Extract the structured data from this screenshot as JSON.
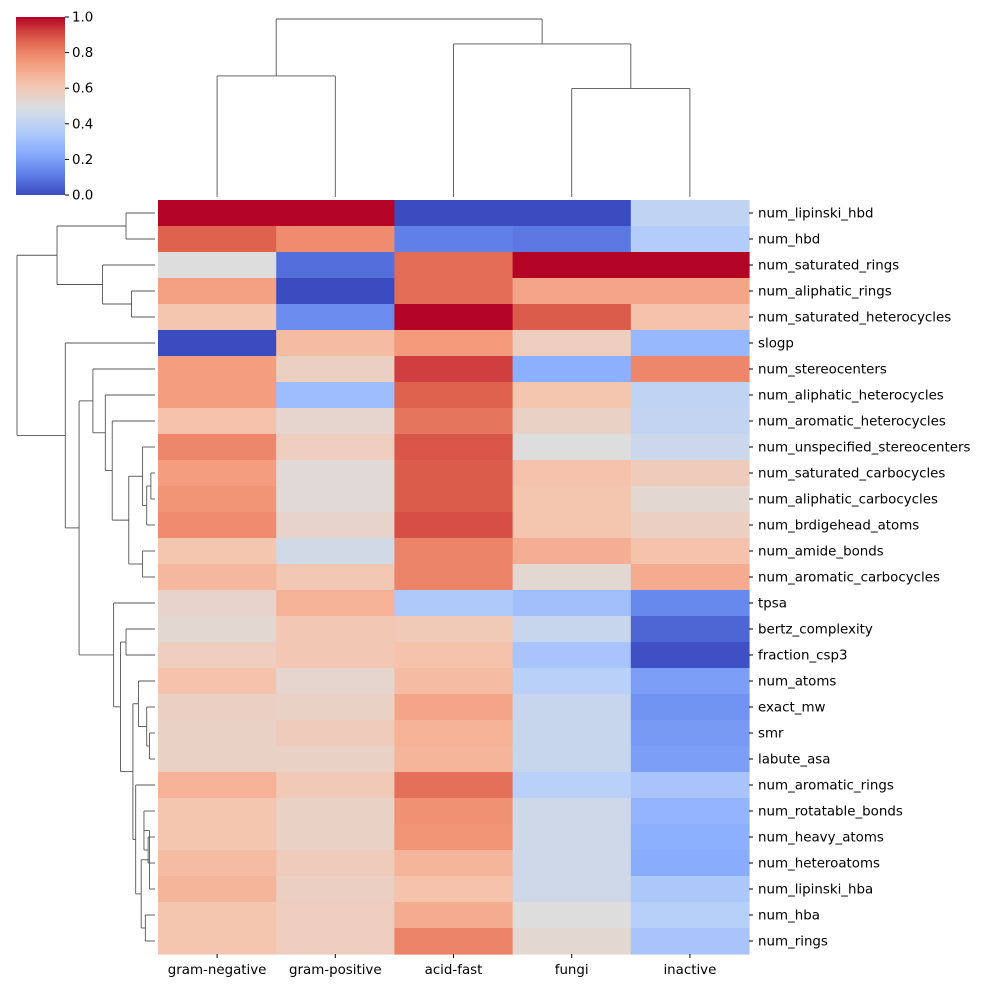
{
  "chart_data": {
    "type": "heatmap",
    "title": "",
    "colormap": "coolwarm",
    "colorbar": {
      "vmin": 0.0,
      "vmax": 1.0,
      "ticks": [
        "0.0",
        "0.2",
        "0.4",
        "0.6",
        "0.8",
        "1.0"
      ]
    },
    "columns": [
      "gram-negative",
      "gram-positive",
      "acid-fast",
      "fungi",
      "inactive"
    ],
    "rows": [
      "num_lipinski_hbd",
      "num_hbd",
      "num_saturated_rings",
      "num_aliphatic_rings",
      "num_saturated_heterocycles",
      "slogp",
      "num_stereocenters",
      "num_aliphatic_heterocycles",
      "num_aromatic_heterocycles",
      "num_unspecified_stereocenters",
      "num_saturated_carbocycles",
      "num_aliphatic_carbocycles",
      "num_brdigehead_atoms",
      "num_amide_bonds",
      "num_aromatic_carbocycles",
      "tpsa",
      "bertz_complexity",
      "fraction_csp3",
      "num_atoms",
      "exact_mw",
      "smr",
      "labute_asa",
      "num_aromatic_rings",
      "num_rotatable_bonds",
      "num_heavy_atoms",
      "num_heteroatoms",
      "num_lipinski_hba",
      "num_hba",
      "num_rings"
    ],
    "values": [
      [
        1.0,
        1.0,
        0.0,
        0.0,
        0.4
      ],
      [
        0.87,
        0.78,
        0.12,
        0.1,
        0.36
      ],
      [
        0.5,
        0.08,
        0.85,
        1.0,
        1.0
      ],
      [
        0.73,
        0.0,
        0.85,
        0.72,
        0.72
      ],
      [
        0.62,
        0.15,
        1.0,
        0.88,
        0.63
      ],
      [
        0.0,
        0.65,
        0.75,
        0.58,
        0.28
      ],
      [
        0.74,
        0.57,
        0.92,
        0.25,
        0.79
      ],
      [
        0.74,
        0.3,
        0.87,
        0.62,
        0.4
      ],
      [
        0.63,
        0.54,
        0.83,
        0.56,
        0.41
      ],
      [
        0.79,
        0.58,
        0.89,
        0.5,
        0.44
      ],
      [
        0.74,
        0.52,
        0.88,
        0.63,
        0.59
      ],
      [
        0.76,
        0.52,
        0.88,
        0.62,
        0.53
      ],
      [
        0.78,
        0.55,
        0.9,
        0.62,
        0.57
      ],
      [
        0.62,
        0.46,
        0.8,
        0.69,
        0.63
      ],
      [
        0.66,
        0.61,
        0.8,
        0.53,
        0.7
      ],
      [
        0.55,
        0.68,
        0.35,
        0.31,
        0.14
      ],
      [
        0.53,
        0.61,
        0.6,
        0.43,
        0.06
      ],
      [
        0.58,
        0.61,
        0.63,
        0.33,
        0.01
      ],
      [
        0.63,
        0.54,
        0.65,
        0.38,
        0.2
      ],
      [
        0.57,
        0.56,
        0.72,
        0.43,
        0.17
      ],
      [
        0.56,
        0.59,
        0.68,
        0.43,
        0.19
      ],
      [
        0.56,
        0.56,
        0.67,
        0.43,
        0.2
      ],
      [
        0.68,
        0.6,
        0.84,
        0.38,
        0.33
      ],
      [
        0.62,
        0.56,
        0.77,
        0.45,
        0.27
      ],
      [
        0.62,
        0.56,
        0.76,
        0.45,
        0.25
      ],
      [
        0.65,
        0.59,
        0.67,
        0.45,
        0.24
      ],
      [
        0.67,
        0.57,
        0.63,
        0.45,
        0.34
      ],
      [
        0.62,
        0.58,
        0.7,
        0.5,
        0.37
      ],
      [
        0.62,
        0.58,
        0.8,
        0.53,
        0.33
      ]
    ],
    "column_dendrogram": [
      [
        0,
        1,
        0.68
      ],
      [
        3,
        4,
        0.61
      ],
      [
        2,
        6,
        0.86
      ],
      [
        5,
        7,
        1.0
      ]
    ],
    "row_dendrogram": [
      [
        0,
        1,
        0.21
      ],
      [
        3,
        4,
        0.17
      ],
      [
        2,
        30,
        0.38
      ],
      [
        29,
        31,
        0.71
      ],
      [
        10,
        11,
        0.03
      ],
      [
        33,
        12,
        0.06
      ],
      [
        9,
        34,
        0.09
      ],
      [
        13,
        14,
        0.09
      ],
      [
        35,
        36,
        0.19
      ],
      [
        8,
        37,
        0.31
      ],
      [
        7,
        38,
        0.36
      ],
      [
        6,
        39,
        0.45
      ],
      [
        20,
        21,
        0.04
      ],
      [
        19,
        41,
        0.06
      ],
      [
        18,
        42,
        0.12
      ],
      [
        16,
        17,
        0.21
      ],
      [
        24,
        25,
        0.05
      ],
      [
        23,
        45,
        0.08
      ],
      [
        26,
        46,
        0.04
      ],
      [
        27,
        28,
        0.07
      ],
      [
        47,
        48,
        0.1
      ],
      [
        22,
        49,
        0.14
      ],
      [
        43,
        50,
        0.16
      ],
      [
        44,
        51,
        0.25
      ],
      [
        15,
        52,
        0.3
      ],
      [
        40,
        53,
        0.55
      ],
      [
        5,
        54,
        0.65
      ],
      [
        32,
        55,
        1.0
      ]
    ]
  }
}
